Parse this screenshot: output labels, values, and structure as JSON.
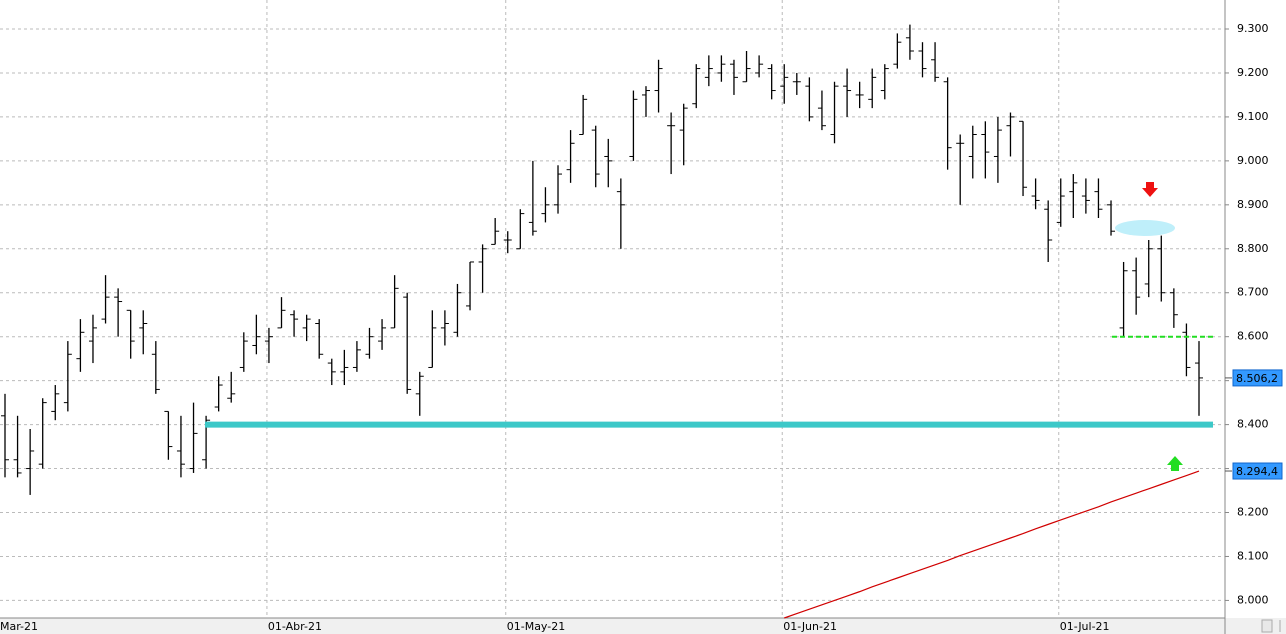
{
  "chart_data": {
    "type": "ohlc",
    "categories": [
      "Mar-21",
      null,
      null,
      null,
      null,
      null,
      null,
      null,
      null,
      null,
      null,
      null,
      null,
      null,
      null,
      null,
      null,
      null,
      null,
      null,
      null,
      "01-Abr-21",
      null,
      null,
      null,
      null,
      null,
      null,
      null,
      null,
      null,
      null,
      null,
      null,
      null,
      null,
      null,
      null,
      null,
      null,
      "01-May-21",
      null,
      null,
      null,
      null,
      null,
      null,
      null,
      null,
      null,
      null,
      null,
      null,
      null,
      null,
      null,
      null,
      null,
      null,
      null,
      null,
      null,
      "01-Jun-21",
      null,
      null,
      null,
      null,
      null,
      null,
      null,
      null,
      null,
      null,
      null,
      null,
      null,
      null,
      null,
      null,
      null,
      null,
      null,
      null,
      null,
      "01-Jul-21",
      null,
      null,
      null,
      null,
      null,
      null,
      null,
      null,
      null,
      null,
      null
    ],
    "open": [
      8420,
      8320,
      8300,
      8310,
      8430,
      8450,
      8550,
      8590,
      8640,
      8690,
      8660,
      8620,
      8560,
      8430,
      8340,
      8300,
      8320,
      8440,
      8460,
      8530,
      8580,
      8590,
      8620,
      8650,
      8620,
      8630,
      8540,
      8520,
      8530,
      8560,
      8590,
      8620,
      8690,
      8470,
      8530,
      8620,
      8610,
      8670,
      8770,
      8810,
      8820,
      8800,
      8860,
      8880,
      8900,
      8980,
      9060,
      9070,
      9010,
      8930,
      9010,
      9150,
      9160,
      9080,
      9070,
      9130,
      9190,
      9200,
      9220,
      9180,
      9200,
      9210,
      9170,
      9180,
      9170,
      9120,
      9060,
      9170,
      9150,
      9140,
      9160,
      9220,
      9280,
      9250,
      9230,
      9180,
      9040,
      9010,
      9060,
      9010,
      9080,
      9090,
      8920,
      8890,
      8860,
      8930,
      8920,
      8930,
      8900,
      8620,
      8750,
      8720,
      8800,
      8700,
      8610,
      8540
    ],
    "high": [
      8470,
      8420,
      8390,
      8460,
      8490,
      8590,
      8640,
      8650,
      8740,
      8710,
      8660,
      8660,
      8590,
      8430,
      8420,
      8450,
      8420,
      8510,
      8520,
      8610,
      8650,
      8620,
      8690,
      8660,
      8650,
      8640,
      8550,
      8570,
      8590,
      8620,
      8640,
      8740,
      8700,
      8520,
      8660,
      8660,
      8720,
      8770,
      8810,
      8870,
      8840,
      8890,
      9000,
      8940,
      8990,
      9070,
      9150,
      9080,
      9050,
      8960,
      9160,
      9170,
      9230,
      9110,
      9130,
      9220,
      9240,
      9240,
      9230,
      9250,
      9240,
      9220,
      9220,
      9200,
      9190,
      9160,
      9180,
      9210,
      9180,
      9210,
      9220,
      9290,
      9310,
      9270,
      9270,
      9190,
      9060,
      9080,
      9090,
      9100,
      9110,
      9090,
      8960,
      8910,
      8960,
      8970,
      8960,
      8960,
      8910,
      8770,
      8780,
      8820,
      8830,
      8710,
      8630,
      8590
    ],
    "low": [
      8280,
      8280,
      8240,
      8300,
      8410,
      8430,
      8520,
      8540,
      8630,
      8600,
      8550,
      8560,
      8470,
      8320,
      8280,
      8290,
      8300,
      8430,
      8450,
      8520,
      8560,
      8540,
      8620,
      8600,
      8590,
      8550,
      8490,
      8490,
      8520,
      8550,
      8570,
      8620,
      8470,
      8420,
      8530,
      8580,
      8600,
      8660,
      8700,
      8810,
      8790,
      8800,
      8830,
      8860,
      8880,
      8950,
      9060,
      8940,
      8940,
      8800,
      9000,
      9100,
      9110,
      8970,
      8990,
      9120,
      9170,
      9180,
      9150,
      9180,
      9190,
      9140,
      9130,
      9150,
      9090,
      9070,
      9040,
      9100,
      9120,
      9120,
      9140,
      9210,
      9230,
      9190,
      9180,
      8980,
      8900,
      8960,
      8960,
      8950,
      9010,
      8920,
      8890,
      8770,
      8850,
      8870,
      8880,
      8870,
      8830,
      8600,
      8650,
      8690,
      8680,
      8620,
      8510,
      8420
    ],
    "close": [
      8320,
      8290,
      8340,
      8450,
      8470,
      8560,
      8610,
      8620,
      8690,
      8680,
      8590,
      8630,
      8480,
      8350,
      8310,
      8380,
      8410,
      8490,
      8470,
      8590,
      8600,
      8600,
      8660,
      8640,
      8640,
      8560,
      8520,
      8530,
      8570,
      8600,
      8620,
      8710,
      8480,
      8510,
      8620,
      8630,
      8700,
      8770,
      8800,
      8840,
      8820,
      8880,
      8840,
      8900,
      8970,
      9040,
      9140,
      8970,
      9000,
      8900,
      9140,
      9160,
      9210,
      9080,
      9120,
      9210,
      9210,
      9220,
      9190,
      9210,
      9220,
      9160,
      9190,
      9180,
      9100,
      9080,
      9170,
      9160,
      9150,
      9190,
      9210,
      9270,
      9250,
      9210,
      9190,
      9030,
      9040,
      9060,
      9020,
      9070,
      9100,
      8940,
      8910,
      8820,
      8920,
      8950,
      8910,
      8890,
      8840,
      8750,
      8690,
      8800,
      8700,
      8650,
      8530,
      8506.2
    ],
    "color": "#000000",
    "moving_average": {
      "color": "#d00000",
      "values": [
        null,
        null,
        null,
        null,
        null,
        null,
        null,
        null,
        null,
        null,
        null,
        null,
        null,
        null,
        null,
        null,
        null,
        null,
        null,
        null,
        null,
        null,
        null,
        null,
        null,
        null,
        null,
        null,
        null,
        null,
        null,
        null,
        null,
        null,
        null,
        null,
        null,
        null,
        null,
        null,
        null,
        null,
        null,
        null,
        null,
        null,
        null,
        null,
        null,
        null,
        null,
        null,
        null,
        null,
        null,
        null,
        null,
        null,
        null,
        null,
        null,
        null,
        7960,
        7970,
        7980,
        7990,
        8000,
        8010,
        8020,
        8031,
        8041,
        8051,
        8061,
        8071,
        8081,
        8091,
        8102,
        8112,
        8122,
        8132,
        8142,
        8152,
        8163,
        8173,
        8183,
        8193,
        8203,
        8213,
        8224,
        8234,
        8244,
        8254,
        8264,
        8274,
        8284,
        8294.4
      ]
    },
    "hlines": [
      {
        "value": 8400,
        "color": "#3cc8c8",
        "dashed": false
      },
      {
        "value": 8600,
        "color": "#22dd22",
        "dashed": true
      }
    ],
    "price_tags": [
      {
        "value": 8506.2,
        "label": "8.506,2"
      },
      {
        "value": 8294.4,
        "label": "8.294,4"
      }
    ],
    "ylim": [
      7960,
      9366
    ],
    "yticks": [
      {
        "value": 8000,
        "label": "8.000"
      },
      {
        "value": 8100,
        "label": "8.100"
      },
      {
        "value": 8200,
        "label": "8.200"
      },
      {
        "value": 8300,
        "label": "8.300"
      },
      {
        "value": 8400,
        "label": "8.400"
      },
      {
        "value": 8500,
        "label": "8.500"
      },
      {
        "value": 8600,
        "label": "8.600"
      },
      {
        "value": 8700,
        "label": "8.700"
      },
      {
        "value": 8800,
        "label": "8.800"
      },
      {
        "value": 8900,
        "label": "8.900"
      },
      {
        "value": 9000,
        "label": "9.000"
      },
      {
        "value": 9100,
        "label": "9.100"
      },
      {
        "value": 9200,
        "label": "9.200"
      },
      {
        "value": 9300,
        "label": "9.300"
      }
    ],
    "grid": true
  }
}
